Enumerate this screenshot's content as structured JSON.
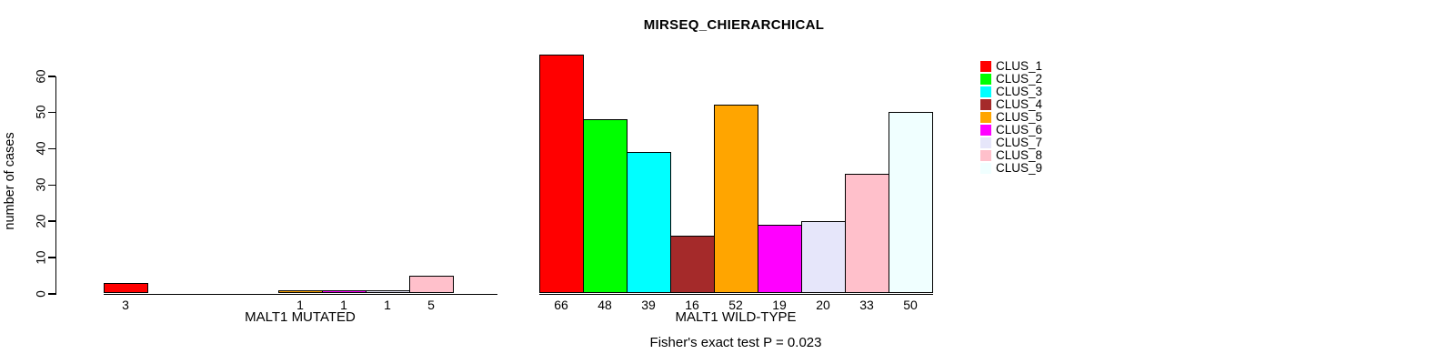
{
  "title": "MIRSEQ_CHIERARCHICAL",
  "footer": "Fisher's exact test P = 0.023",
  "y_axis": {
    "label": "number of cases",
    "ticks": [
      0,
      10,
      20,
      30,
      40,
      50,
      60
    ]
  },
  "legend": {
    "items": [
      {
        "label": "CLUS_1",
        "color": "#FF0000"
      },
      {
        "label": "CLUS_2",
        "color": "#00FF00"
      },
      {
        "label": "CLUS_3",
        "color": "#00FFFF"
      },
      {
        "label": "CLUS_4",
        "color": "#A52A2A"
      },
      {
        "label": "CLUS_5",
        "color": "#FFA500"
      },
      {
        "label": "CLUS_6",
        "color": "#FF00FF"
      },
      {
        "label": "CLUS_7",
        "color": "#E6E6FA"
      },
      {
        "label": "CLUS_8",
        "color": "#FFC0CB"
      },
      {
        "label": "CLUS_9",
        "color": "#F0FFFF"
      }
    ]
  },
  "chart_data": [
    {
      "type": "bar",
      "title": "MIRSEQ_CHIERARCHICAL",
      "xlabel": "MALT1 MUTATED",
      "ylabel": "number of cases",
      "categories": [
        "CLUS_1",
        "CLUS_2",
        "CLUS_3",
        "CLUS_4",
        "CLUS_5",
        "CLUS_6",
        "CLUS_7",
        "CLUS_8",
        "CLUS_9"
      ],
      "values": [
        3,
        0,
        0,
        0,
        1,
        1,
        1,
        5,
        0
      ],
      "bar_labels": [
        "3",
        "",
        "",
        "",
        "1",
        "1",
        "1",
        "5",
        ""
      ],
      "colors": [
        "#FF0000",
        "#00FF00",
        "#00FFFF",
        "#A52A2A",
        "#FFA500",
        "#FF00FF",
        "#E6E6FA",
        "#FFC0CB",
        "#F0FFFF"
      ],
      "ylim": [
        0,
        66
      ],
      "grid": false,
      "legend_position": "right"
    },
    {
      "type": "bar",
      "title": "MIRSEQ_CHIERARCHICAL",
      "xlabel": "MALT1 WILD-TYPE",
      "ylabel": "number of cases",
      "categories": [
        "CLUS_1",
        "CLUS_2",
        "CLUS_3",
        "CLUS_4",
        "CLUS_5",
        "CLUS_6",
        "CLUS_7",
        "CLUS_8",
        "CLUS_9"
      ],
      "values": [
        66,
        48,
        39,
        16,
        52,
        19,
        20,
        33,
        50
      ],
      "bar_labels": [
        "66",
        "48",
        "39",
        "16",
        "52",
        "19",
        "20",
        "33",
        "50"
      ],
      "colors": [
        "#FF0000",
        "#00FF00",
        "#00FFFF",
        "#A52A2A",
        "#FFA500",
        "#FF00FF",
        "#E6E6FA",
        "#FFC0CB",
        "#F0FFFF"
      ],
      "ylim": [
        0,
        66
      ],
      "grid": false,
      "legend_position": "right"
    }
  ]
}
